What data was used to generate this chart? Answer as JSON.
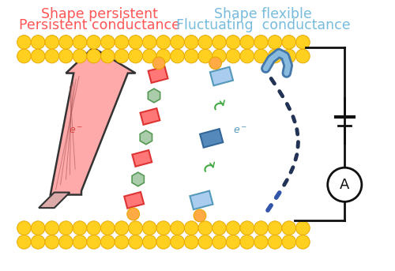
{
  "left_title_line1": "Shape persistent",
  "left_title_line2": "Persistent conductance",
  "right_title_line1": "Shape flexible",
  "right_title_line2": "Fluctuating  conductance",
  "left_title_color": "#FF5555",
  "right_title_color": "#77BBDD",
  "bg_color": "#FFFFFF",
  "gold_color": "#FFD020",
  "gold_edge": "#E8A800",
  "red_rect_face": "#FF7777",
  "red_rect_edge": "#DD3333",
  "green_hex_face": "#AACCAA",
  "green_hex_edge": "#559955",
  "blue_rect_light_face": "#AACCEE",
  "blue_rect_light_edge": "#5599BB",
  "blue_rect_dark_face": "#5588BB",
  "blue_rect_dark_edge": "#336699",
  "arrow_face": "#FFAAAA",
  "arrow_edge": "#333333",
  "dashed_dark": "#223355",
  "dashed_blue": "#3355AA",
  "bent_tube_outer": "#4477AA",
  "bent_tube_inner": "#88BBDD",
  "circuit_color": "#111111",
  "elabel_red": "#DD4444",
  "elabel_blue": "#5599BB",
  "gold_tip": "#FFAA44"
}
